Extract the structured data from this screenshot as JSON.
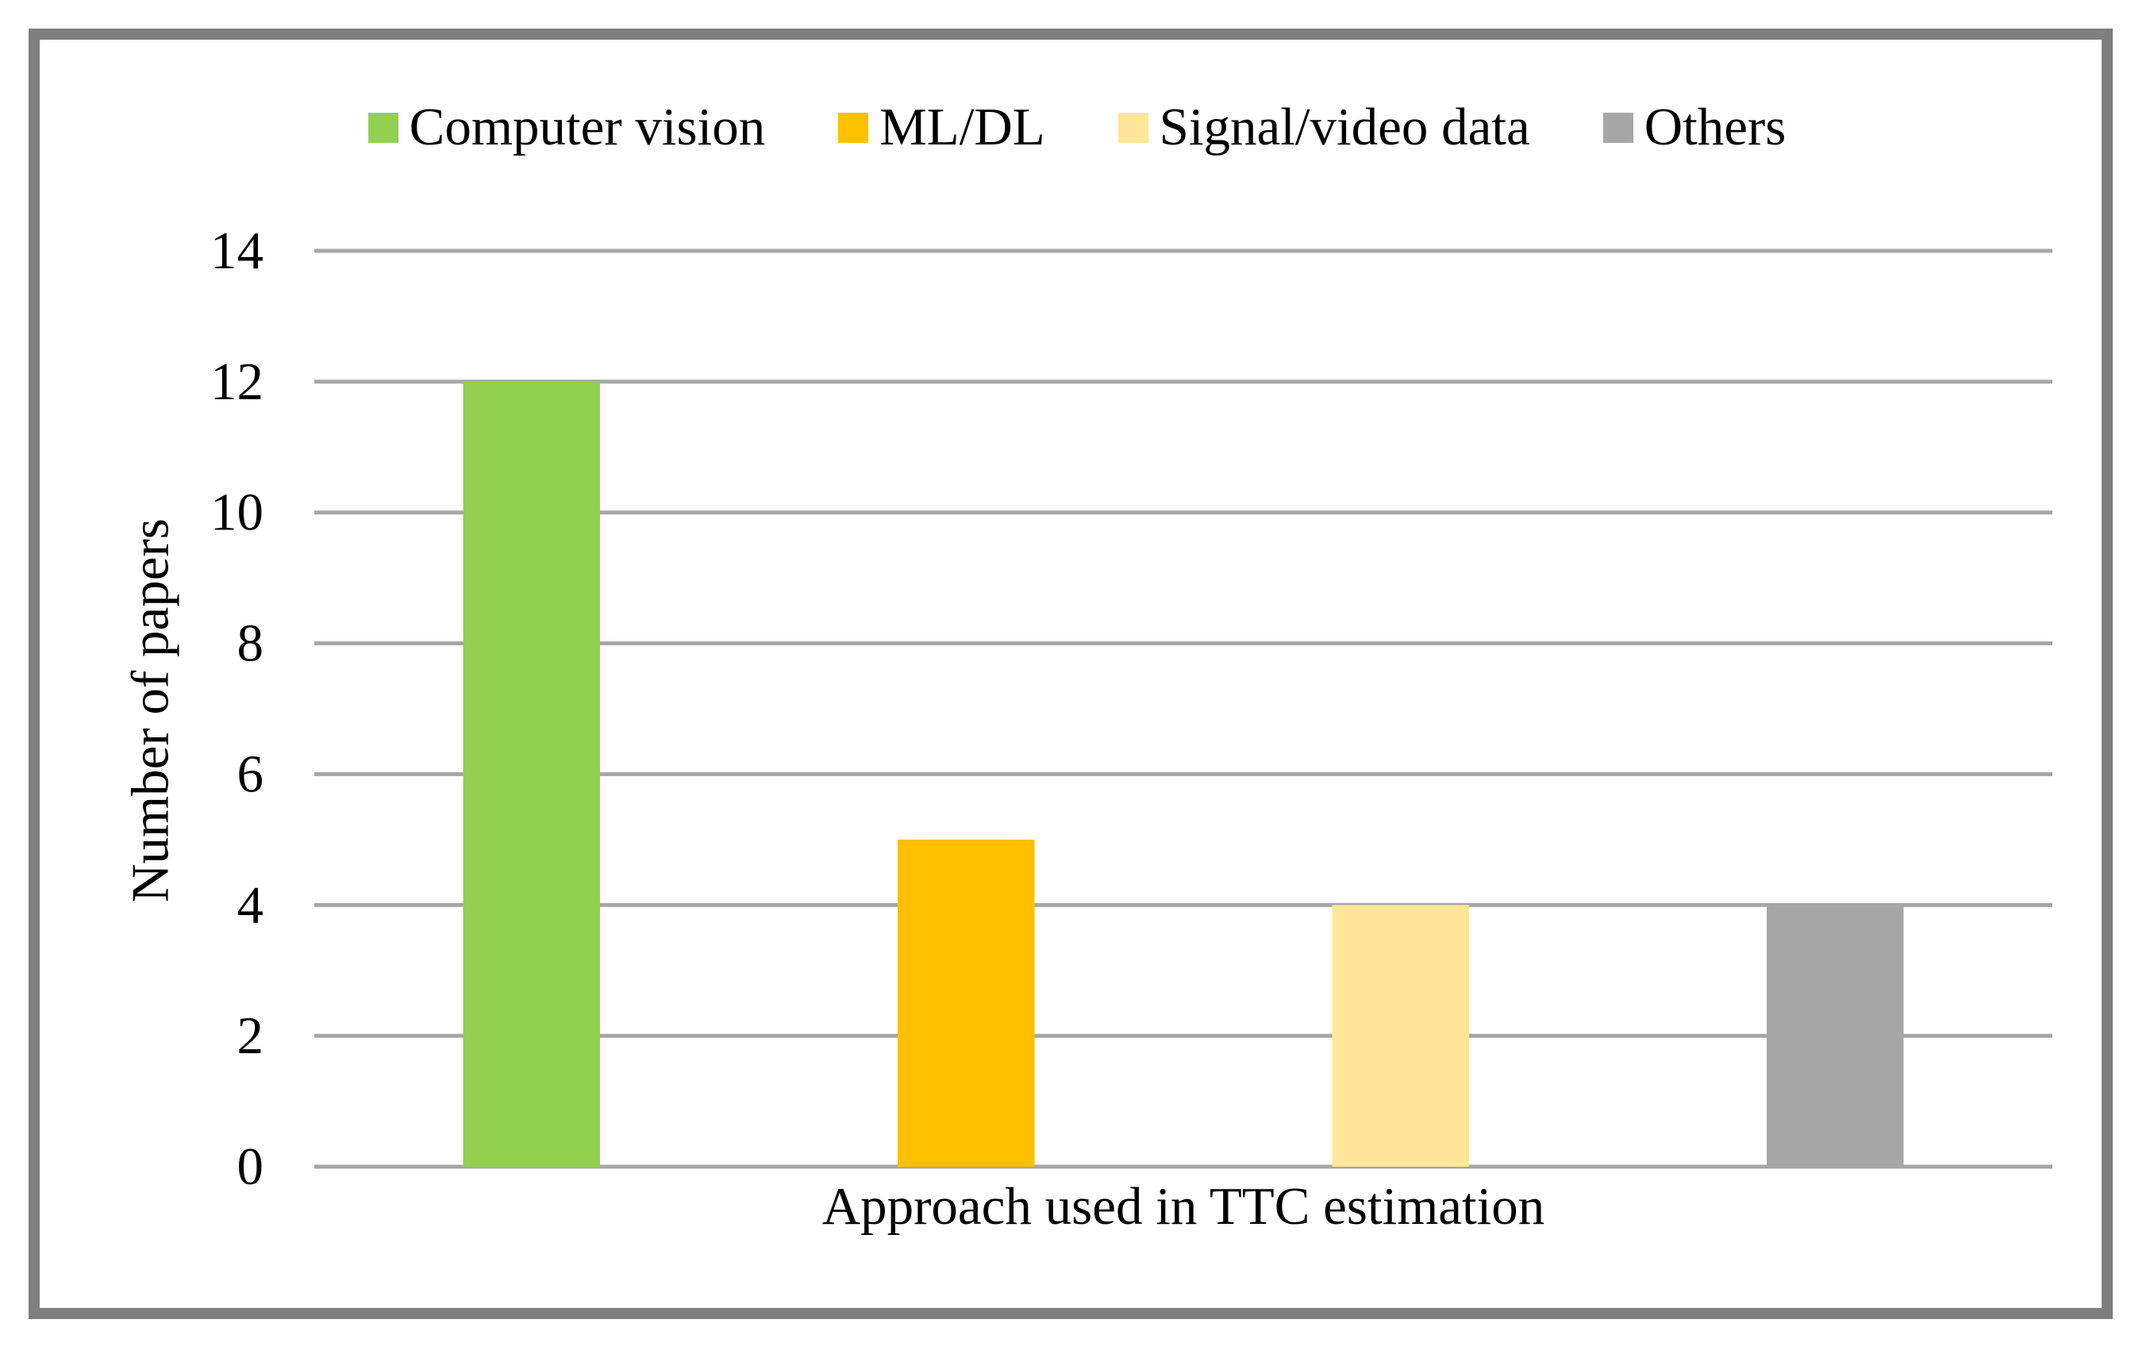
{
  "chart_data": {
    "type": "bar",
    "categories": [
      "Computer vision",
      "ML/DL",
      "Signal/video data",
      "Others"
    ],
    "values": [
      12,
      5,
      4,
      4
    ],
    "colors": [
      "#92d050",
      "#ffc000",
      "#ffe699",
      "#a6a6a6"
    ],
    "xlabel": "Approach used in TTC estimation",
    "ylabel": "Number of papers",
    "ylim": [
      0,
      14
    ],
    "yticks": [
      "0",
      "2",
      "4",
      "6",
      "8",
      "10",
      "12",
      "14"
    ],
    "grid": true,
    "legend": "top-center"
  }
}
